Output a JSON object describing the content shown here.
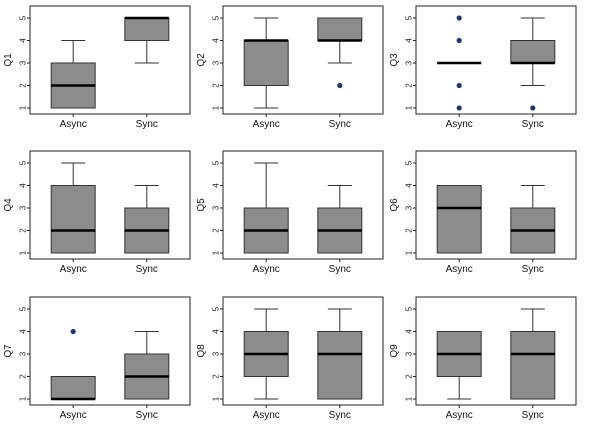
{
  "chart_data": [
    {
      "type": "box",
      "ylabel": "Q1",
      "ylim": [
        1,
        5
      ],
      "yticks": [
        "1",
        "2",
        "3",
        "4",
        "5"
      ],
      "categories": [
        "Async",
        "Sync"
      ],
      "boxes": [
        {
          "whisker_low": 1,
          "q1": 1,
          "median": 2,
          "q3": 3,
          "whisker_high": 4,
          "outliers": []
        },
        {
          "whisker_low": 3,
          "q1": 4,
          "median": 5,
          "q3": 5,
          "whisker_high": 5,
          "outliers": []
        }
      ]
    },
    {
      "type": "box",
      "ylabel": "Q2",
      "ylim": [
        1,
        5
      ],
      "yticks": [
        "1",
        "2",
        "3",
        "4",
        "5"
      ],
      "categories": [
        "Async",
        "Sync"
      ],
      "boxes": [
        {
          "whisker_low": 1,
          "q1": 2,
          "median": 4,
          "q3": 4,
          "whisker_high": 5,
          "outliers": []
        },
        {
          "whisker_low": 3,
          "q1": 4,
          "median": 4,
          "q3": 5,
          "whisker_high": 5,
          "outliers": [
            2
          ]
        }
      ]
    },
    {
      "type": "box",
      "ylabel": "Q3",
      "ylim": [
        1,
        5
      ],
      "yticks": [
        "1",
        "2",
        "3",
        "4",
        "5"
      ],
      "categories": [
        "Async",
        "Sync"
      ],
      "boxes": [
        {
          "whisker_low": 3,
          "q1": 3,
          "median": 3,
          "q3": 3,
          "whisker_high": 3,
          "outliers": [
            1,
            2,
            4,
            5
          ]
        },
        {
          "whisker_low": 2,
          "q1": 3,
          "median": 3,
          "q3": 4,
          "whisker_high": 5,
          "outliers": [
            1
          ]
        }
      ]
    },
    {
      "type": "box",
      "ylabel": "Q4",
      "ylim": [
        1,
        5
      ],
      "yticks": [
        "1",
        "2",
        "3",
        "4",
        "5"
      ],
      "categories": [
        "Async",
        "Sync"
      ],
      "boxes": [
        {
          "whisker_low": 1,
          "q1": 1,
          "median": 2,
          "q3": 4,
          "whisker_high": 5,
          "outliers": []
        },
        {
          "whisker_low": 1,
          "q1": 1,
          "median": 2,
          "q3": 3,
          "whisker_high": 4,
          "outliers": []
        }
      ]
    },
    {
      "type": "box",
      "ylabel": "Q5",
      "ylim": [
        1,
        5
      ],
      "yticks": [
        "1",
        "2",
        "3",
        "4",
        "5"
      ],
      "categories": [
        "Async",
        "Sync"
      ],
      "boxes": [
        {
          "whisker_low": 1,
          "q1": 1,
          "median": 2,
          "q3": 3,
          "whisker_high": 5,
          "outliers": []
        },
        {
          "whisker_low": 1,
          "q1": 1,
          "median": 2,
          "q3": 3,
          "whisker_high": 4,
          "outliers": []
        }
      ]
    },
    {
      "type": "box",
      "ylabel": "Q6",
      "ylim": [
        1,
        5
      ],
      "yticks": [
        "1",
        "2",
        "3",
        "4",
        "5"
      ],
      "categories": [
        "Async",
        "Sync"
      ],
      "boxes": [
        {
          "whisker_low": 1,
          "q1": 1,
          "median": 3,
          "q3": 4,
          "whisker_high": 4,
          "outliers": []
        },
        {
          "whisker_low": 1,
          "q1": 1,
          "median": 2,
          "q3": 3,
          "whisker_high": 4,
          "outliers": []
        }
      ]
    },
    {
      "type": "box",
      "ylabel": "Q7",
      "ylim": [
        1,
        5
      ],
      "yticks": [
        "1",
        "2",
        "3",
        "4",
        "5"
      ],
      "categories": [
        "Async",
        "Sync"
      ],
      "boxes": [
        {
          "whisker_low": 1,
          "q1": 1,
          "median": 1,
          "q3": 2,
          "whisker_high": 2,
          "outliers": [
            4
          ]
        },
        {
          "whisker_low": 1,
          "q1": 1,
          "median": 2,
          "q3": 3,
          "whisker_high": 4,
          "outliers": []
        }
      ]
    },
    {
      "type": "box",
      "ylabel": "Q8",
      "ylim": [
        1,
        5
      ],
      "yticks": [
        "1",
        "2",
        "3",
        "4",
        "5"
      ],
      "categories": [
        "Async",
        "Sync"
      ],
      "boxes": [
        {
          "whisker_low": 1,
          "q1": 2,
          "median": 3,
          "q3": 4,
          "whisker_high": 5,
          "outliers": []
        },
        {
          "whisker_low": 1,
          "q1": 1,
          "median": 3,
          "q3": 4,
          "whisker_high": 5,
          "outliers": []
        }
      ]
    },
    {
      "type": "box",
      "ylabel": "Q9",
      "ylim": [
        1,
        5
      ],
      "yticks": [
        "1",
        "2",
        "3",
        "4",
        "5"
      ],
      "categories": [
        "Async",
        "Sync"
      ],
      "boxes": [
        {
          "whisker_low": 1,
          "q1": 2,
          "median": 3,
          "q3": 4,
          "whisker_high": 4,
          "outliers": []
        },
        {
          "whisker_low": 1,
          "q1": 1,
          "median": 3,
          "q3": 4,
          "whisker_high": 5,
          "outliers": []
        }
      ]
    }
  ],
  "colors": {
    "box_fill": "#8c8c8c",
    "outlier": "#1f3a6e",
    "frame": "#222222",
    "median": "#000000"
  }
}
